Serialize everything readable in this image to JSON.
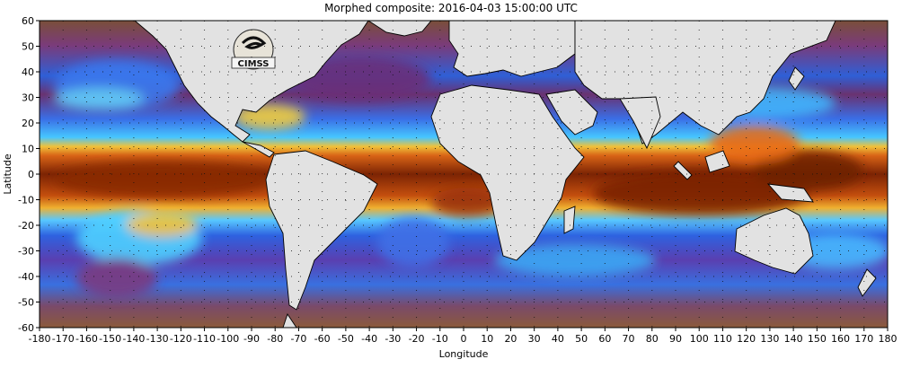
{
  "title": "Morphed composite: 2016-04-03 15:00:00 UTC",
  "axes": {
    "x_label": "Longitude",
    "y_label": "Latitude",
    "lon_range": [
      -180,
      180
    ],
    "lat_range": [
      -60,
      60
    ],
    "lon_ticks": [
      -180,
      -170,
      -160,
      -150,
      -140,
      -130,
      -120,
      -110,
      -100,
      -90,
      -80,
      -70,
      -60,
      -50,
      -40,
      -30,
      -20,
      -10,
      0,
      10,
      20,
      30,
      40,
      50,
      60,
      70,
      80,
      90,
      100,
      110,
      120,
      130,
      140,
      150,
      160,
      170,
      180
    ],
    "lat_ticks": [
      60,
      50,
      40,
      30,
      20,
      10,
      0,
      -10,
      -20,
      -30,
      -40,
      -50,
      -60
    ]
  },
  "logo": {
    "text": "CIMSS"
  },
  "colors": {
    "land": "#e2e2e2",
    "dry": "#8a5a3a",
    "dry_purple": "#6a2f6a",
    "moist_blue": "#2b63e6",
    "moist_cyan": "#3fc3ff",
    "moist_green": "#86e07a",
    "moist_yellow": "#f2d33a",
    "moist_orange": "#e6761a",
    "wet": "#8a2b08",
    "outline": "#000000",
    "gridline": "#111111"
  },
  "map_features": {
    "type": "world-map",
    "content": "Global total precipitable water composite; tropical moisture band (orange/brown) near equator, blue/cyan bands in midlatitudes, dry purple-brown regions poleward."
  }
}
